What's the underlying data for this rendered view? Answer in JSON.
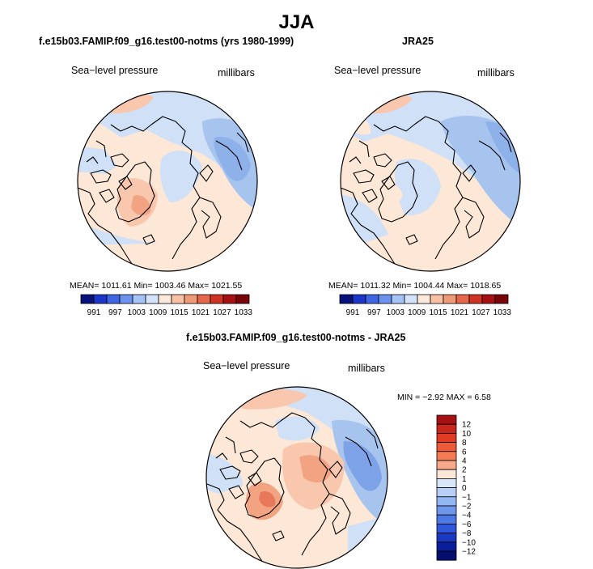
{
  "title": "JJA",
  "panels": [
    {
      "title": "f.e15b03.FAMIP.f09_g16.test00-notms (yrs 1980-1999)",
      "variable": "Sea−level pressure",
      "units": "millibars",
      "stats": "MEAN= 1011.61   Min= 1003.46   Max= 1021.55"
    },
    {
      "title": "JRA25",
      "variable": "Sea−level pressure",
      "units": "millibars",
      "stats": "MEAN= 1011.32   Min= 1004.44   Max= 1018.65"
    },
    {
      "title": "f.e15b03.FAMIP.f09_g16.test00-notms - JRA25",
      "variable": "Sea−level pressure",
      "units": "millibars",
      "stats": "MIN =   −2.92  MAX =    6.58"
    }
  ],
  "colorbar_abs": {
    "labels": [
      "991",
      "997",
      "1003",
      "1009",
      "1015",
      "1021",
      "1027",
      "1033"
    ],
    "colors": [
      "#08127a",
      "#1d35c9",
      "#3e66e3",
      "#6b93ee",
      "#a5c3f5",
      "#d2e3fa",
      "#fde9d9",
      "#f8c1a6",
      "#f19a78",
      "#e5664a",
      "#cf3324",
      "#a51112",
      "#7a0509"
    ]
  },
  "colorbar_diff": {
    "labels": [
      "12",
      "10",
      "8",
      "6",
      "4",
      "2",
      "1",
      "0",
      "−1",
      "−2",
      "−4",
      "−6",
      "−8",
      "−10",
      "−12"
    ],
    "colors": [
      "#a51112",
      "#c7261d",
      "#e03a23",
      "#ef5b39",
      "#f47c55",
      "#f8a98a",
      "#fde7d6",
      "#d9e6fa",
      "#b7cff7",
      "#94b6f2",
      "#6f97ec",
      "#4c79e5",
      "#2f57d9",
      "#1a38c2",
      "#0b1e9a",
      "#050f6e"
    ]
  },
  "map_colors": {
    "light_blue": "#cfe0f7",
    "mid_blue": "#a7c4ef",
    "deep_blue": "#7ea2e7",
    "cream": "#fde7d6",
    "peach": "#f8c7ae",
    "salmon": "#f2a382",
    "red": "#e8785a"
  }
}
